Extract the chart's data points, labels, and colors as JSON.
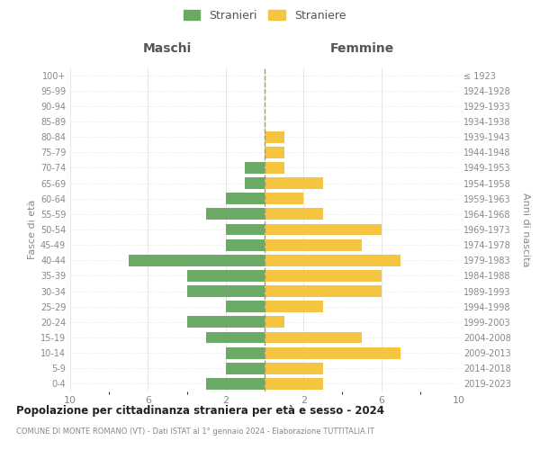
{
  "age_groups": [
    "0-4",
    "5-9",
    "10-14",
    "15-19",
    "20-24",
    "25-29",
    "30-34",
    "35-39",
    "40-44",
    "45-49",
    "50-54",
    "55-59",
    "60-64",
    "65-69",
    "70-74",
    "75-79",
    "80-84",
    "85-89",
    "90-94",
    "95-99",
    "100+"
  ],
  "birth_years": [
    "2019-2023",
    "2014-2018",
    "2009-2013",
    "2004-2008",
    "1999-2003",
    "1994-1998",
    "1989-1993",
    "1984-1988",
    "1979-1983",
    "1974-1978",
    "1969-1973",
    "1964-1968",
    "1959-1963",
    "1954-1958",
    "1949-1953",
    "1944-1948",
    "1939-1943",
    "1934-1938",
    "1929-1933",
    "1924-1928",
    "≤ 1923"
  ],
  "males": [
    3,
    2,
    2,
    3,
    4,
    2,
    4,
    4,
    7,
    2,
    2,
    3,
    2,
    1,
    1,
    0,
    0,
    0,
    0,
    0,
    0
  ],
  "females": [
    3,
    3,
    7,
    5,
    1,
    3,
    6,
    6,
    7,
    5,
    6,
    3,
    2,
    3,
    1,
    1,
    1,
    0,
    0,
    0,
    0
  ],
  "male_color": "#6aaa64",
  "female_color": "#f5c542",
  "male_label": "Stranieri",
  "female_label": "Straniere",
  "title": "Popolazione per cittadinanza straniera per età e sesso - 2024",
  "subtitle": "COMUNE DI MONTE ROMANO (VT) - Dati ISTAT al 1° gennaio 2024 - Elaborazione TUTTITALIA.IT",
  "left_header": "Maschi",
  "right_header": "Femmine",
  "ylabel": "Fasce di età",
  "right_ylabel": "Anni di nascita",
  "xlim": 10,
  "background_color": "#ffffff",
  "grid_color": "#dddddd",
  "dashed_line_color": "#999977"
}
